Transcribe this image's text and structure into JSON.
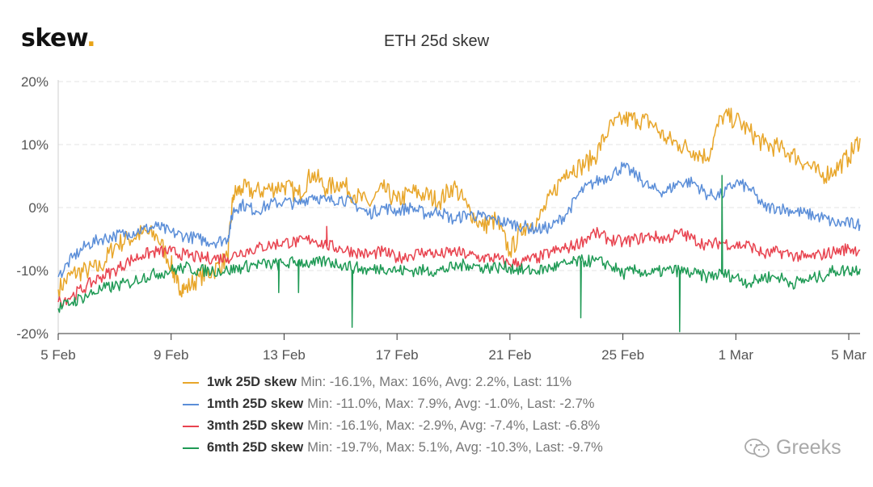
{
  "logo": {
    "text": "skew",
    "dot": "."
  },
  "watermark": {
    "text": "Greeks",
    "icon": "wechat-icon"
  },
  "legend": [
    {
      "name": "1wk 25D skew",
      "stats": "Min: -16.1%, Max: 16%, Avg: 2.2%, Last: 11%",
      "color": "#e8a62a"
    },
    {
      "name": "1mth 25D skew",
      "stats": "Min: -11.0%, Max: 7.9%, Avg: -1.0%, Last: -2.7%",
      "color": "#5b8ed8"
    },
    {
      "name": "3mth 25D skew",
      "stats": "Min: -16.1%, Max: -2.9%, Avg: -7.4%, Last: -6.8%",
      "color": "#e8434f"
    },
    {
      "name": "6mth 25D skew",
      "stats": "Min: -19.7%, Max: 5.1%, Avg: -10.3%, Last: -9.7%",
      "color": "#1f9a55"
    }
  ],
  "chart_data": {
    "type": "line",
    "title": "ETH 25d skew",
    "xlabel": "",
    "ylabel": "",
    "ylim": [
      -20,
      20
    ],
    "xlim": [
      0,
      28.4
    ],
    "y_ticks": [
      {
        "value": 20,
        "label": "20%"
      },
      {
        "value": 10,
        "label": "10%"
      },
      {
        "value": 0,
        "label": "0%"
      },
      {
        "value": -10,
        "label": "-10%"
      },
      {
        "value": -20,
        "label": "-20%"
      }
    ],
    "x_ticks": [
      {
        "value": 0,
        "label": "5 Feb"
      },
      {
        "value": 4,
        "label": "9 Feb"
      },
      {
        "value": 8,
        "label": "13 Feb"
      },
      {
        "value": 12,
        "label": "17 Feb"
      },
      {
        "value": 16,
        "label": "21 Feb"
      },
      {
        "value": 20,
        "label": "25 Feb"
      },
      {
        "value": 24,
        "label": "1 Mar"
      },
      {
        "value": 28,
        "label": "5 Mar"
      }
    ],
    "grid": "horizontal dashed",
    "legend_position": "bottom",
    "series": [
      {
        "name": "1wk 25D skew",
        "color": "#e8a62a",
        "x": [
          0,
          0.5,
          1,
          1.5,
          2,
          2.5,
          3,
          3.5,
          4,
          4.2,
          4.5,
          5,
          5.5,
          6,
          6.2,
          6.5,
          7,
          7.5,
          8,
          8.5,
          9,
          9.5,
          10,
          10.5,
          11,
          11.5,
          12,
          12.5,
          13,
          13.5,
          14,
          14.5,
          15,
          15.5,
          16,
          16.5,
          17,
          17.5,
          18,
          18.5,
          19,
          19.5,
          20,
          20.5,
          21,
          21.5,
          22,
          22.5,
          23,
          23.5,
          24,
          24.5,
          25,
          25.5,
          26,
          26.5,
          27,
          27.5,
          28,
          28.4
        ],
        "y": [
          -13,
          -10.5,
          -10,
          -9.5,
          -6,
          -5,
          -4,
          -4.5,
          -9,
          -12,
          -13,
          -11,
          -10,
          -8,
          2,
          3,
          2.5,
          3,
          3.5,
          2,
          5.5,
          3,
          4,
          2,
          0.5,
          3,
          1,
          2.5,
          2,
          1,
          3.5,
          0,
          -3,
          -2,
          -7,
          -3,
          -2,
          2,
          6,
          6.5,
          8,
          12.5,
          14,
          14,
          13.5,
          11,
          10,
          9,
          8,
          14.5,
          14,
          12,
          10,
          9.5,
          8.5,
          7,
          5,
          6,
          8,
          11
        ]
      },
      {
        "name": "1mth 25D skew",
        "color": "#5b8ed8",
        "x": [
          0,
          0.5,
          1,
          1.5,
          2,
          2.5,
          3,
          3.5,
          4,
          4.5,
          5,
          5.5,
          6,
          6.2,
          6.5,
          7,
          7.5,
          8,
          8.5,
          9,
          9.5,
          10,
          10.5,
          11,
          11.5,
          12,
          12.5,
          13,
          13.5,
          14,
          14.5,
          15,
          15.5,
          16,
          16.5,
          17,
          17.5,
          18,
          18.5,
          19,
          19.5,
          20,
          20.5,
          21,
          21.5,
          22,
          22.5,
          23,
          23.5,
          24,
          24.5,
          25,
          25.5,
          26,
          26.5,
          27,
          27.5,
          28,
          28.4
        ],
        "y": [
          -11,
          -8,
          -6,
          -5,
          -4.5,
          -4,
          -3.5,
          -3,
          -4,
          -4.5,
          -5,
          -5.5,
          -5,
          -0.5,
          0.5,
          -0.5,
          0.5,
          1,
          0.5,
          2,
          1,
          1.5,
          0.5,
          -1,
          0,
          -0.5,
          0,
          -1,
          -0.5,
          -2,
          -1,
          -1.5,
          -2,
          -2.5,
          -3,
          -3.5,
          -3,
          -1,
          2.5,
          4,
          5,
          6.5,
          5,
          3,
          2.5,
          4,
          4,
          2,
          2,
          4,
          3,
          0,
          0,
          -0.5,
          -1,
          -1.5,
          -2.5,
          -2.5,
          -2.7
        ]
      },
      {
        "name": "3mth 25D skew",
        "color": "#e8434f",
        "x": [
          0,
          0.5,
          1,
          1.5,
          2,
          2.5,
          3,
          3.5,
          4,
          4.5,
          5,
          5.5,
          6,
          6.5,
          7,
          7.5,
          8,
          8.5,
          9,
          9.5,
          10,
          10.5,
          11,
          11.5,
          12,
          12.5,
          13,
          13.5,
          14,
          14.5,
          15,
          15.5,
          16,
          16.5,
          17,
          17.5,
          18,
          18.5,
          19,
          19.5,
          20,
          20.5,
          21,
          21.5,
          22,
          22.5,
          23,
          23.5,
          24,
          24.5,
          25,
          25.5,
          26,
          26.5,
          27,
          27.5,
          28,
          28.4
        ],
        "y": [
          -15,
          -14,
          -12.5,
          -11,
          -10,
          -8.5,
          -7.5,
          -7,
          -7,
          -7.5,
          -8,
          -8,
          -8,
          -7,
          -6.5,
          -6,
          -5.5,
          -5.5,
          -5,
          -6,
          -6.5,
          -7,
          -7.5,
          -7,
          -8,
          -7.5,
          -7,
          -7.5,
          -7,
          -7.5,
          -8,
          -8,
          -9,
          -8.5,
          -8,
          -7,
          -6.5,
          -5.5,
          -4,
          -5,
          -5.5,
          -5,
          -4.5,
          -5,
          -4,
          -5,
          -6,
          -5.5,
          -6,
          -6,
          -7.5,
          -7,
          -7.5,
          -8,
          -7.5,
          -7,
          -6.5,
          -6.8
        ]
      },
      {
        "name": "6mth 25D skew",
        "color": "#1f9a55",
        "x": [
          0,
          0.5,
          1,
          1.5,
          2,
          2.5,
          3,
          3.5,
          4,
          4.5,
          5,
          5.5,
          6,
          6.5,
          7,
          7.5,
          8,
          8.5,
          9,
          9.5,
          10,
          10.5,
          11,
          11.5,
          12,
          12.5,
          13,
          13.5,
          14,
          14.5,
          15,
          15.5,
          16,
          16.5,
          17,
          17.5,
          18,
          18.5,
          19,
          19.5,
          20,
          20.5,
          21,
          21.5,
          22,
          22.5,
          23,
          23.5,
          24,
          24.5,
          25,
          25.5,
          26,
          26.5,
          27,
          27.5,
          28,
          28.4
        ],
        "y": [
          -16,
          -15,
          -14,
          -13,
          -12.5,
          -12,
          -11,
          -10.5,
          -10,
          -9.5,
          -10,
          -10,
          -10,
          -9.5,
          -9,
          -9,
          -9,
          -8.5,
          -9,
          -8.5,
          -9,
          -9.5,
          -10,
          -9.5,
          -10,
          -10,
          -10,
          -10,
          -9.5,
          -9,
          -9.5,
          -9.5,
          -9.5,
          -10,
          -10,
          -9.5,
          -9,
          -8.5,
          -8.5,
          -9,
          -10.5,
          -10,
          -10.5,
          -10,
          -10,
          -10.5,
          -11,
          -10.5,
          -11,
          -12,
          -11,
          -11,
          -12,
          -11.5,
          -11,
          -10,
          -10,
          -9.7
        ]
      }
    ],
    "spikes": [
      {
        "series": "6mth 25D skew",
        "x": 7.8,
        "y": -13.5
      },
      {
        "series": "6mth 25D skew",
        "x": 8.5,
        "y": -13.5
      },
      {
        "series": "6mth 25D skew",
        "x": 10.4,
        "y": -19
      },
      {
        "series": "6mth 25D skew",
        "x": 18.5,
        "y": -17.5
      },
      {
        "series": "6mth 25D skew",
        "x": 22.0,
        "y": -19.7
      },
      {
        "series": "6mth 25D skew",
        "x": 23.5,
        "y": 5.1
      },
      {
        "series": "3mth 25D skew",
        "x": 9.5,
        "y": -3
      }
    ]
  }
}
